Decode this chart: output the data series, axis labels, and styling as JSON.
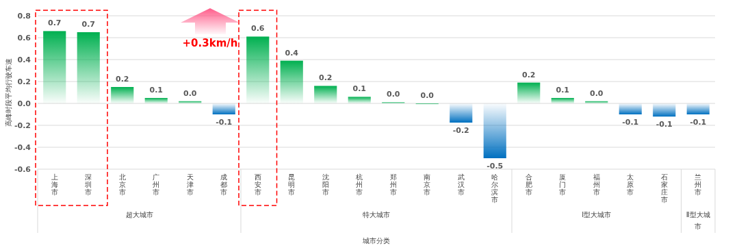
{
  "chart_data": {
    "type": "bar",
    "ylabel": "高峰时段平均行驶车速",
    "xlabel": "城市分类",
    "categories": [
      "上海市",
      "深圳市",
      "北京市",
      "广州市",
      "天津市",
      "成都市",
      "西安市",
      "昆明市",
      "沈阳市",
      "杭州市",
      "郑州市",
      "南京市",
      "武汉市",
      "哈尔滨市",
      "合肥市",
      "厦门市",
      "福州市",
      "太原市",
      "石家庄市",
      "兰州市"
    ],
    "values": [
      0.66,
      0.65,
      0.15,
      0.05,
      0.02,
      -0.1,
      0.61,
      0.39,
      0.16,
      0.06,
      0.01,
      0,
      -0.175,
      -0.5,
      0.19,
      0.05,
      0.02,
      -0.1,
      -0.12,
      -0.1
    ],
    "value_labels": [
      "0.7",
      "0.7",
      "0.2",
      "0.1",
      "0.0",
      "-0.1",
      "0.6",
      "0.4",
      "0.2",
      "0.1",
      "0.0",
      "0.0",
      "-0.2",
      "-0.5",
      "0.2",
      "0.1",
      "0.0",
      "-0.1",
      "-0.1",
      "-0.1"
    ],
    "colors": [
      "#00b050",
      "#00b050",
      "#00b050",
      "#00b050",
      "#00b050",
      "#0070c0",
      "#00b050",
      "#00b050",
      "#00b050",
      "#00b050",
      "#00b050",
      "#00b050",
      "#0070c0",
      "#0070c0",
      "#00b050",
      "#00b050",
      "#00b050",
      "#0070c0",
      "#0070c0",
      "#0070c0"
    ],
    "ylim": [
      -0.6,
      0.8
    ],
    "yticks": [
      {
        "value": -0.6,
        "label": "-0.6"
      },
      {
        "value": -0.4,
        "label": "-0.4"
      },
      {
        "value": -0.2,
        "label": "-0.2"
      },
      {
        "value": 0,
        "label": "0.0"
      },
      {
        "value": 0.2,
        "label": "0.2"
      },
      {
        "value": 0.4,
        "label": "0.4"
      },
      {
        "value": 0.6,
        "label": "0.6"
      },
      {
        "value": 0.8,
        "label": "0.8"
      }
    ],
    "grid": "y",
    "annotations": [
      "超大城市",
      "特大城市",
      "Ⅰ型大城市",
      "Ⅱ型大城市",
      "+0.3km/h"
    ]
  }
}
